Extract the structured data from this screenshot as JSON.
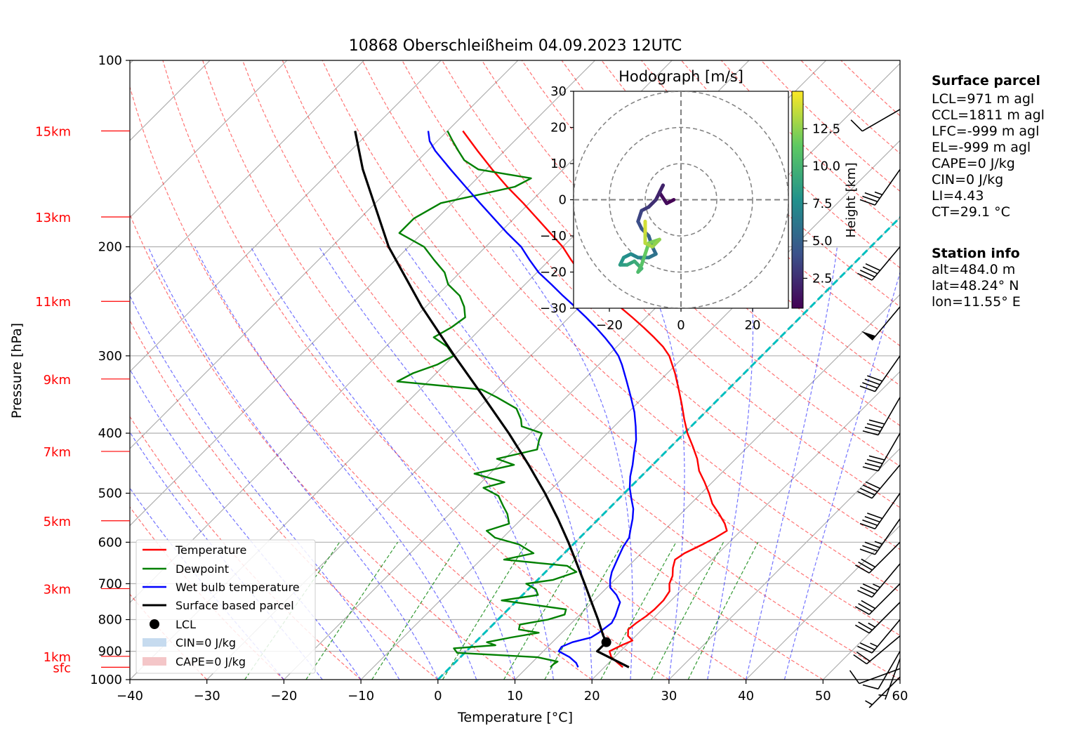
{
  "title": "10868 Oberschleißheim 04.09.2023 12UTC",
  "chart_data": {
    "type": "line",
    "subtype": "skew-t log-p diagram",
    "xlabel": "Temperature [°C]",
    "ylabel": "Pressure [hPa]",
    "xlim": [
      -40,
      60
    ],
    "ylim": [
      1000,
      100
    ],
    "x_ticks": [
      "−40",
      "−30",
      "−20",
      "−10",
      "0",
      "10",
      "20",
      "30",
      "40",
      "50",
      "60"
    ],
    "y_ticks": [
      "100",
      "200",
      "300",
      "400",
      "500",
      "600",
      "700",
      "800",
      "900",
      "1000"
    ],
    "height_markers": [
      {
        "label": "sfc",
        "pressure": 955
      },
      {
        "label": "1km",
        "pressure": 917
      },
      {
        "label": "3km",
        "pressure": 713
      },
      {
        "label": "5km",
        "pressure": 554
      },
      {
        "label": "7km",
        "pressure": 428
      },
      {
        "label": "9km",
        "pressure": 327
      },
      {
        "label": "11km",
        "pressure": 245
      },
      {
        "label": "13km",
        "pressure": 179
      },
      {
        "label": "15km",
        "pressure": 130
      }
    ],
    "legend_position": "bottom-left",
    "legend": [
      "Temperature",
      "Dewpoint",
      "Wet bulb temperature",
      "Surface based parcel",
      "LCL",
      "CIN=0 J/kg",
      "CAPE=0 J/kg"
    ],
    "series": [
      {
        "name": "Temperature",
        "color": "#ff0000",
        "points": [
          [
            955,
            22.4
          ],
          [
            940,
            21.2
          ],
          [
            920,
            19.6
          ],
          [
            900,
            18.6
          ],
          [
            880,
            19.4
          ],
          [
            865,
            20.2
          ],
          [
            850,
            19.0
          ],
          [
            830,
            18.2
          ],
          [
            810,
            18.4
          ],
          [
            790,
            18.8
          ],
          [
            770,
            19.0
          ],
          [
            745,
            19.0
          ],
          [
            720,
            18.6
          ],
          [
            700,
            17.6
          ],
          [
            680,
            17.0
          ],
          [
            660,
            16.0
          ],
          [
            640,
            15.2
          ],
          [
            625,
            15.6
          ],
          [
            605,
            16.8
          ],
          [
            590,
            17.6
          ],
          [
            575,
            18.2
          ],
          [
            560,
            17.0
          ],
          [
            540,
            15.0
          ],
          [
            520,
            12.8
          ],
          [
            500,
            11.0
          ],
          [
            480,
            9.0
          ],
          [
            460,
            6.8
          ],
          [
            440,
            5.0
          ],
          [
            420,
            2.8
          ],
          [
            400,
            0.4
          ],
          [
            380,
            -1.8
          ],
          [
            360,
            -4.0
          ],
          [
            340,
            -6.4
          ],
          [
            320,
            -9.0
          ],
          [
            300,
            -12.0
          ],
          [
            290,
            -14.0
          ],
          [
            280,
            -16.4
          ],
          [
            270,
            -19.0
          ],
          [
            260,
            -21.8
          ],
          [
            250,
            -24.8
          ],
          [
            240,
            -27.8
          ],
          [
            230,
            -31.0
          ],
          [
            220,
            -34.4
          ],
          [
            210,
            -37.2
          ],
          [
            200,
            -40.0
          ],
          [
            190,
            -43.4
          ],
          [
            180,
            -47.0
          ],
          [
            170,
            -50.8
          ],
          [
            160,
            -55.0
          ],
          [
            150,
            -59.2
          ],
          [
            140,
            -63.5
          ],
          [
            130,
            -68.0
          ]
        ]
      },
      {
        "name": "Dewpoint",
        "color": "#008000",
        "points": [
          [
            955,
            13.0
          ],
          [
            945,
            13.0
          ],
          [
            935,
            13.2
          ],
          [
            920,
            10.0
          ],
          [
            905,
            -1.0
          ],
          [
            890,
            -2.0
          ],
          [
            880,
            3.0
          ],
          [
            870,
            1.5
          ],
          [
            855,
            4.0
          ],
          [
            840,
            7.0
          ],
          [
            830,
            4.0
          ],
          [
            815,
            3.5
          ],
          [
            800,
            6.5
          ],
          [
            785,
            8.0
          ],
          [
            770,
            7.5
          ],
          [
            745,
            -2.0
          ],
          [
            730,
            2.0
          ],
          [
            715,
            1.0
          ],
          [
            700,
            -1.0
          ],
          [
            690,
            2.0
          ],
          [
            670,
            4.0
          ],
          [
            655,
            2.0
          ],
          [
            640,
            -7.0
          ],
          [
            625,
            -4.0
          ],
          [
            605,
            -7.0
          ],
          [
            590,
            -11.0
          ],
          [
            575,
            -13.0
          ],
          [
            560,
            -11.0
          ],
          [
            540,
            -12.5
          ],
          [
            525,
            -14.0
          ],
          [
            505,
            -16.0
          ],
          [
            490,
            -19.0
          ],
          [
            480,
            -17.0
          ],
          [
            465,
            -22.0
          ],
          [
            450,
            -18.0
          ],
          [
            440,
            -21.0
          ],
          [
            425,
            -17.0
          ],
          [
            410,
            -18.0
          ],
          [
            400,
            -18.5
          ],
          [
            390,
            -22.0
          ],
          [
            380,
            -23.0
          ],
          [
            365,
            -25.0
          ],
          [
            350,
            -29.0
          ],
          [
            340,
            -32.0
          ],
          [
            330,
            -44.0
          ],
          [
            320,
            -43.0
          ],
          [
            310,
            -41.0
          ],
          [
            300,
            -40.0
          ],
          [
            290,
            -42.0
          ],
          [
            280,
            -45.0
          ],
          [
            270,
            -44.0
          ],
          [
            260,
            -43.5
          ],
          [
            250,
            -45.0
          ],
          [
            240,
            -47.0
          ],
          [
            230,
            -50.0
          ],
          [
            220,
            -52.0
          ],
          [
            210,
            -55.0
          ],
          [
            200,
            -58.0
          ],
          [
            190,
            -63.0
          ],
          [
            180,
            -63.0
          ],
          [
            170,
            -61.5
          ],
          [
            160,
            -54.0
          ],
          [
            155,
            -53.0
          ],
          [
            150,
            -61.0
          ],
          [
            145,
            -64.0
          ],
          [
            140,
            -66.0
          ],
          [
            135,
            -68.0
          ],
          [
            130,
            -70.0
          ]
        ]
      },
      {
        "name": "Wet bulb temperature",
        "color": "#0000ff",
        "points": [
          [
            955,
            16.6
          ],
          [
            940,
            15.8
          ],
          [
            920,
            14.2
          ],
          [
            900,
            12.0
          ],
          [
            885,
            11.8
          ],
          [
            870,
            12.6
          ],
          [
            855,
            14.4
          ],
          [
            840,
            14.8
          ],
          [
            825,
            15.0
          ],
          [
            810,
            15.2
          ],
          [
            790,
            14.8
          ],
          [
            770,
            14.2
          ],
          [
            750,
            13.6
          ],
          [
            730,
            12.2
          ],
          [
            710,
            10.4
          ],
          [
            690,
            9.4
          ],
          [
            670,
            8.6
          ],
          [
            650,
            8.0
          ],
          [
            630,
            7.4
          ],
          [
            610,
            6.8
          ],
          [
            590,
            6.4
          ],
          [
            570,
            5.4
          ],
          [
            550,
            4.4
          ],
          [
            530,
            3.2
          ],
          [
            510,
            1.6
          ],
          [
            490,
            0.0
          ],
          [
            470,
            -1.4
          ],
          [
            450,
            -2.6
          ],
          [
            430,
            -4.0
          ],
          [
            410,
            -5.4
          ],
          [
            390,
            -7.2
          ],
          [
            370,
            -9.2
          ],
          [
            350,
            -11.6
          ],
          [
            330,
            -14.2
          ],
          [
            310,
            -17.0
          ],
          [
            300,
            -18.6
          ],
          [
            290,
            -20.6
          ],
          [
            280,
            -22.8
          ],
          [
            270,
            -25.2
          ],
          [
            260,
            -27.8
          ],
          [
            250,
            -30.6
          ],
          [
            240,
            -33.6
          ],
          [
            230,
            -36.6
          ],
          [
            220,
            -39.8
          ],
          [
            210,
            -42.6
          ],
          [
            200,
            -45.4
          ],
          [
            190,
            -49.0
          ],
          [
            180,
            -52.6
          ],
          [
            170,
            -56.4
          ],
          [
            160,
            -60.4
          ],
          [
            150,
            -64.6
          ],
          [
            140,
            -69.0
          ],
          [
            135,
            -71.0
          ],
          [
            130,
            -72.5
          ]
        ]
      },
      {
        "name": "Surface based parcel",
        "color": "#000000",
        "points": [
          [
            955,
            23.2
          ],
          [
            900,
            17.0
          ],
          [
            870,
            17.0
          ],
          [
            850,
            15.8
          ],
          [
            800,
            13.0
          ],
          [
            750,
            9.9
          ],
          [
            700,
            6.6
          ],
          [
            650,
            3.0
          ],
          [
            600,
            -0.9
          ],
          [
            550,
            -5.3
          ],
          [
            500,
            -10.3
          ],
          [
            450,
            -16.1
          ],
          [
            400,
            -22.8
          ],
          [
            350,
            -30.7
          ],
          [
            300,
            -39.9
          ],
          [
            250,
            -50.5
          ],
          [
            200,
            -62.6
          ],
          [
            150,
            -76.0
          ],
          [
            130,
            -82.0
          ]
        ]
      }
    ],
    "lcl_point": {
      "pressure": 870,
      "temperature": 17.0
    },
    "cin_label": "CIN=0 J/kg",
    "cape_label": "CAPE=0 J/kg"
  },
  "hodograph": {
    "title": "Hodograph [m/s]",
    "x_ticks": [
      "−20",
      "0",
      "20"
    ],
    "y_ticks": [
      "30",
      "20",
      "10",
      "0",
      "−10",
      "−20",
      "−30"
    ],
    "lim": [
      -30,
      30
    ],
    "colorbar_label": "Height [km]",
    "colorbar_ticks": [
      "2.5",
      "5.0",
      "7.5",
      "10.0",
      "12.5"
    ],
    "colorbar_range": [
      0.5,
      15
    ],
    "trace": [
      {
        "u": -2,
        "v": 0,
        "h": 0.5
      },
      {
        "u": -4,
        "v": -1,
        "h": 1.0
      },
      {
        "u": -6,
        "v": 2,
        "h": 1.5
      },
      {
        "u": -5,
        "v": 4,
        "h": 2.0
      },
      {
        "u": -7,
        "v": 0,
        "h": 2.5
      },
      {
        "u": -9,
        "v": -2,
        "h": 3.0
      },
      {
        "u": -11,
        "v": -3,
        "h": 3.5
      },
      {
        "u": -12,
        "v": -6,
        "h": 4.0
      },
      {
        "u": -11,
        "v": -8,
        "h": 4.5
      },
      {
        "u": -9,
        "v": -10,
        "h": 5.0
      },
      {
        "u": -8,
        "v": -13,
        "h": 5.5
      },
      {
        "u": -7,
        "v": -15,
        "h": 6.0
      },
      {
        "u": -9,
        "v": -16,
        "h": 6.5
      },
      {
        "u": -12,
        "v": -16,
        "h": 7.0
      },
      {
        "u": -14,
        "v": -15,
        "h": 7.5
      },
      {
        "u": -16,
        "v": -16,
        "h": 8.0
      },
      {
        "u": -17,
        "v": -18,
        "h": 8.5
      },
      {
        "u": -15,
        "v": -18,
        "h": 9.0
      },
      {
        "u": -13,
        "v": -17,
        "h": 9.5
      },
      {
        "u": -11,
        "v": -19,
        "h": 10.0
      },
      {
        "u": -12,
        "v": -20,
        "h": 10.5
      },
      {
        "u": -11,
        "v": -18,
        "h": 11.0
      },
      {
        "u": -10,
        "v": -15,
        "h": 11.5
      },
      {
        "u": -9,
        "v": -12,
        "h": 12.0
      },
      {
        "u": -6,
        "v": -11,
        "h": 12.5
      },
      {
        "u": -8,
        "v": -13,
        "h": 13.0
      },
      {
        "u": -10,
        "v": -12,
        "h": 13.5
      },
      {
        "u": -10,
        "v": -9,
        "h": 14.0
      },
      {
        "u": -10,
        "v": -6,
        "h": 14.5
      }
    ]
  },
  "surface_parcel": {
    "heading": "Surface parcel",
    "lines": [
      "LCL=971 m agl",
      "CCL=1811 m agl",
      "LFC=-999 m agl",
      "EL=-999 m agl",
      "CAPE=0 J/kg",
      "CIN=0 J/kg",
      "LI=4.43",
      "CT=29.1 °C"
    ]
  },
  "station_info": {
    "heading": "Station info",
    "lines": [
      "alt=484.0 m",
      "lat=48.24° N",
      "lon=11.55° E"
    ]
  },
  "colors": {
    "temperature": "#ff0000",
    "dewpoint": "#008000",
    "wetbulb": "#0000ff",
    "parcel": "#000000",
    "isotherm_zero": "#00bfbf",
    "dry_adiabat": "#ff0000",
    "moist_adiabat": "#0000ff",
    "mixing_ratio": "#008000",
    "height_label": "#ff0000",
    "cin_fill": "#c6dbef",
    "cape_fill": "#f4c6c8"
  },
  "wind_barbs": [
    {
      "pressure": 990,
      "dir": 225,
      "speed_kt": 5
    },
    {
      "pressure": 960,
      "dir": 250,
      "speed_kt": 10
    },
    {
      "pressure": 925,
      "dir": 200,
      "speed_kt": 5
    },
    {
      "pressure": 900,
      "dir": 210,
      "speed_kt": 10
    },
    {
      "pressure": 850,
      "dir": 230,
      "speed_kt": 20
    },
    {
      "pressure": 800,
      "dir": 220,
      "speed_kt": 25
    },
    {
      "pressure": 750,
      "dir": 225,
      "speed_kt": 25
    },
    {
      "pressure": 700,
      "dir": 225,
      "speed_kt": 30
    },
    {
      "pressure": 650,
      "dir": 220,
      "speed_kt": 35
    },
    {
      "pressure": 600,
      "dir": 225,
      "speed_kt": 30
    },
    {
      "pressure": 550,
      "dir": 215,
      "speed_kt": 35
    },
    {
      "pressure": 500,
      "dir": 215,
      "speed_kt": 40
    },
    {
      "pressure": 450,
      "dir": 220,
      "speed_kt": 40
    },
    {
      "pressure": 400,
      "dir": 210,
      "speed_kt": 40
    },
    {
      "pressure": 350,
      "dir": 210,
      "speed_kt": 40
    },
    {
      "pressure": 300,
      "dir": 215,
      "speed_kt": 40
    },
    {
      "pressure": 250,
      "dir": 220,
      "speed_kt": 50
    },
    {
      "pressure": 200,
      "dir": 220,
      "speed_kt": 40
    },
    {
      "pressure": 150,
      "dir": 215,
      "speed_kt": 35
    },
    {
      "pressure": 120,
      "dir": 240,
      "speed_kt": 10
    }
  ]
}
